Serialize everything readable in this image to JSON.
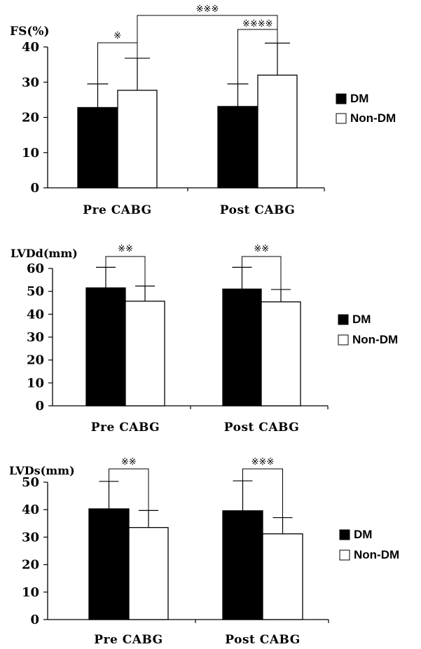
{
  "chart_data": [
    {
      "type": "bar",
      "ylabel": "FS(%)",
      "categories": [
        "Pre CABG",
        "Post CABG"
      ],
      "series": [
        {
          "name": "DM",
          "values": [
            22.8,
            23.1
          ],
          "error": [
            6.7,
            6.4
          ]
        },
        {
          "name": "Non-DM",
          "values": [
            27.7,
            32.0
          ],
          "error": [
            9.1,
            9.1
          ]
        }
      ],
      "ylim": [
        0,
        40
      ],
      "yticks": [
        0,
        10,
        20,
        30,
        40
      ],
      "legend": {
        "position": "right",
        "entries": [
          "DM",
          "Non-DM"
        ]
      },
      "significance": [
        {
          "between": "DM vs Non-DM",
          "category": "Pre CABG",
          "mark": "※"
        },
        {
          "between": "DM vs Non-DM",
          "category": "Post CABG",
          "mark": "※※※※"
        },
        {
          "between": "Non-DM Pre CABG vs Non-DM Post CABG",
          "mark": "※※※"
        }
      ]
    },
    {
      "type": "bar",
      "ylabel": "LVDd(mm)",
      "categories": [
        "Pre CABG",
        "Post CABG"
      ],
      "series": [
        {
          "name": "DM",
          "values": [
            51.5,
            51.0
          ],
          "error": [
            9.0,
            9.5
          ]
        },
        {
          "name": "Non-DM",
          "values": [
            45.7,
            45.4
          ],
          "error": [
            6.6,
            5.4
          ]
        }
      ],
      "ylim": [
        0,
        60
      ],
      "yticks": [
        0,
        10,
        20,
        30,
        40,
        50,
        60
      ],
      "legend": {
        "position": "right",
        "entries": [
          "DM",
          "Non-DM"
        ]
      },
      "significance": [
        {
          "between": "DM vs Non-DM",
          "category": "Pre CABG",
          "mark": "※※"
        },
        {
          "between": "DM vs Non-DM",
          "category": "Post CABG",
          "mark": "※※"
        }
      ]
    },
    {
      "type": "bar",
      "ylabel": "LVDs(mm)",
      "categories": [
        "Pre CABG",
        "Post CABG"
      ],
      "series": [
        {
          "name": "DM",
          "values": [
            40.3,
            39.6
          ],
          "error": [
            10.0,
            10.9
          ]
        },
        {
          "name": "Non-DM",
          "values": [
            33.5,
            31.2
          ],
          "error": [
            6.2,
            5.9
          ]
        }
      ],
      "ylim": [
        0,
        50
      ],
      "yticks": [
        0,
        10,
        20,
        30,
        40,
        50
      ],
      "legend": {
        "position": "right",
        "entries": [
          "DM",
          "Non-DM"
        ]
      },
      "significance": [
        {
          "between": "DM vs Non-DM",
          "category": "Pre CABG",
          "mark": "※※"
        },
        {
          "between": "DM vs Non-DM",
          "category": "Post CABG",
          "mark": "※※※"
        }
      ]
    }
  ],
  "colors": {
    "dm_fill": "#000000",
    "non_dm_fill": "#ffffff",
    "stroke": "#000000"
  }
}
